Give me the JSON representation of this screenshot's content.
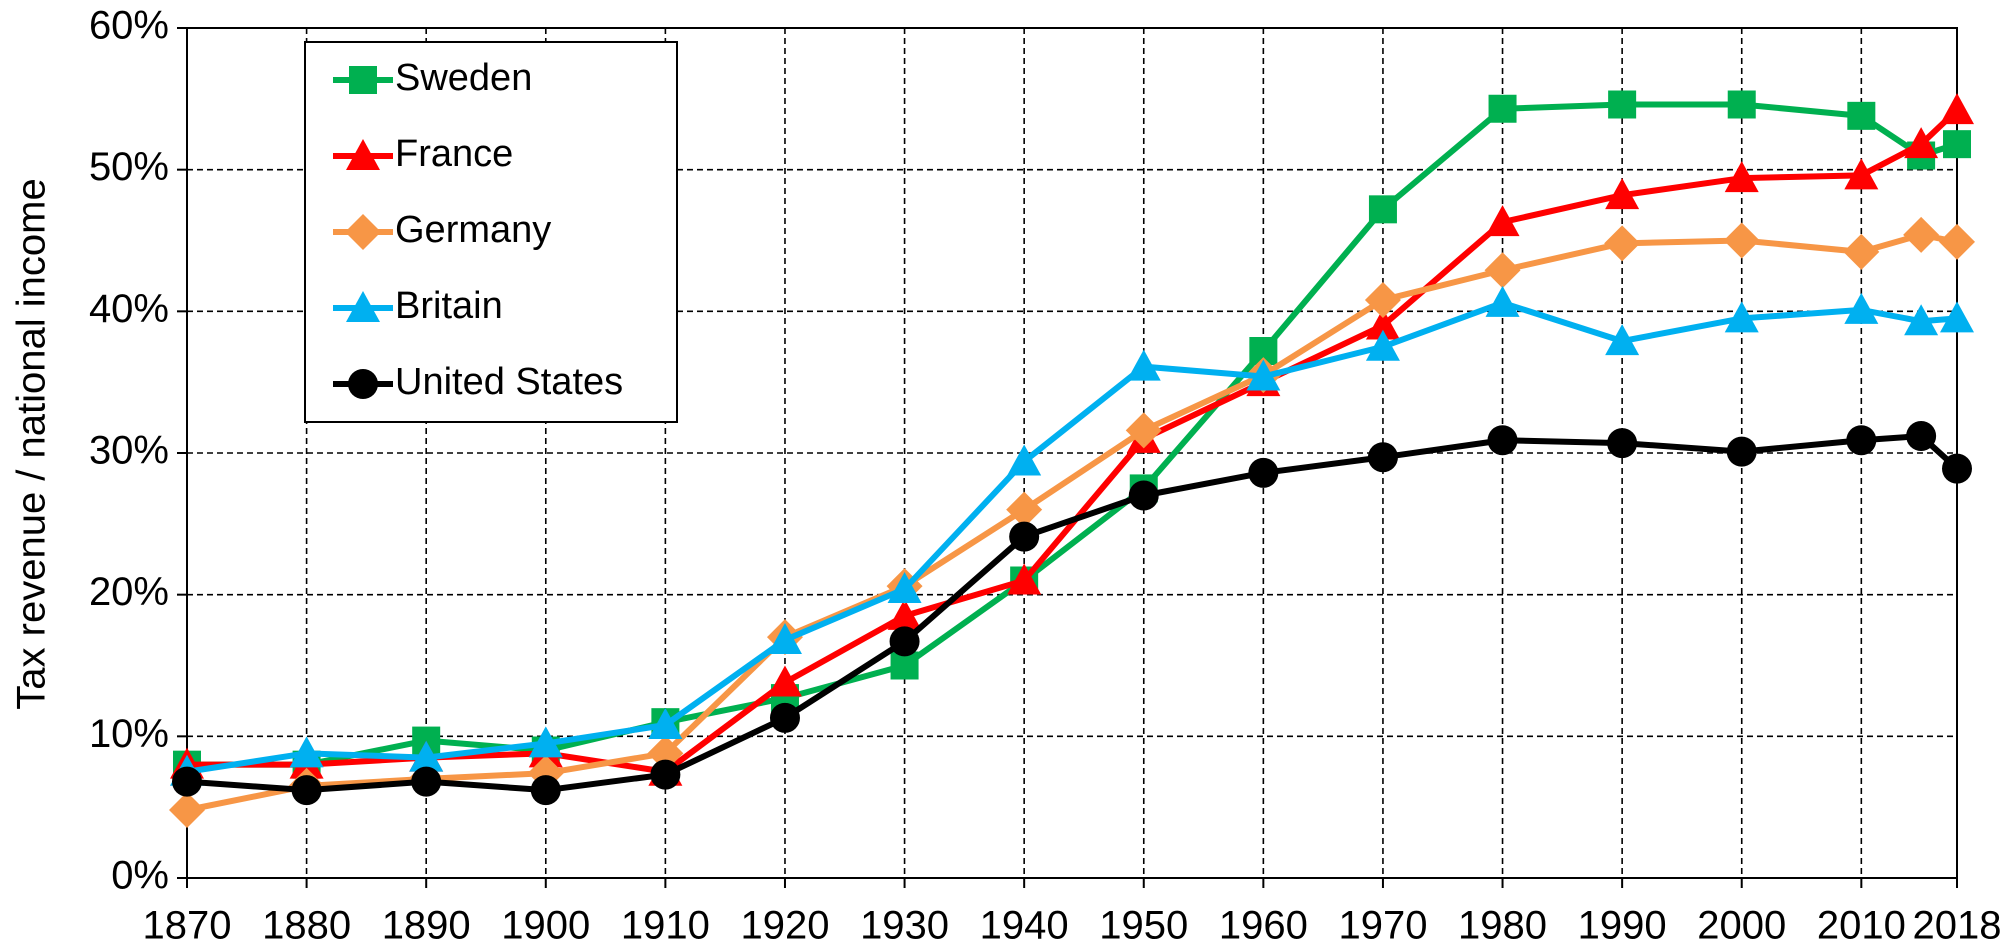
{
  "chart_data": {
    "type": "line",
    "y_label": "Tax revenue / national income",
    "x": [
      1870,
      1880,
      1890,
      1900,
      1910,
      1920,
      1930,
      1940,
      1950,
      1960,
      1970,
      1980,
      1990,
      2000,
      2010,
      2015,
      2018
    ],
    "series": [
      {
        "name": "Sweden",
        "color": "#00b050",
        "marker": "square",
        "values": [
          8,
          8,
          9.7,
          9,
          11,
          12.7,
          15,
          21,
          27.5,
          37.2,
          47.2,
          54.3,
          54.6,
          54.6,
          53.8,
          51,
          51.8
        ]
      },
      {
        "name": "France",
        "color": "#ff0000",
        "marker": "triangle",
        "values": [
          8,
          8,
          8.5,
          8.8,
          7.5,
          13.8,
          18.5,
          21,
          31,
          35,
          39,
          46.3,
          48.2,
          49.4,
          49.6,
          51.8,
          54.2
        ]
      },
      {
        "name": "Germany",
        "color": "#f79646",
        "marker": "diamond",
        "values": [
          4.8,
          6.5,
          7,
          7.4,
          8.8,
          17,
          20.6,
          26,
          31.6,
          35.5,
          40.8,
          42.9,
          44.8,
          45,
          44.2,
          45.4,
          44.9
        ]
      },
      {
        "name": "Britain",
        "color": "#00b0f0",
        "marker": "triangle",
        "values": [
          7.5,
          8.8,
          8.5,
          9.5,
          10.8,
          16.8,
          20.4,
          29.4,
          36.1,
          35.4,
          37.5,
          40.6,
          37.9,
          39.5,
          40.1,
          39.3,
          39.5
        ]
      },
      {
        "name": "United States",
        "color": "#000000",
        "marker": "circle",
        "values": [
          6.8,
          6.2,
          6.8,
          6.2,
          7.3,
          11.3,
          16.7,
          24.1,
          27,
          28.6,
          29.7,
          30.9,
          30.7,
          30.1,
          30.9,
          31.2,
          28.9
        ]
      }
    ],
    "xlim": [
      1870,
      2018
    ],
    "xticks": [
      1870,
      1880,
      1890,
      1900,
      1910,
      1920,
      1930,
      1940,
      1950,
      1960,
      1970,
      1980,
      1990,
      2000,
      2010,
      2018
    ],
    "ylim": [
      0,
      60
    ],
    "yticks": [
      {
        "value": 0,
        "label": "0%"
      },
      {
        "value": 10,
        "label": "10%"
      },
      {
        "value": 20,
        "label": "20%"
      },
      {
        "value": 30,
        "label": "30%"
      },
      {
        "value": 40,
        "label": "40%"
      },
      {
        "value": 50,
        "label": "50%"
      },
      {
        "value": 60,
        "label": "60%"
      }
    ],
    "grid": true,
    "legend": "top-left"
  }
}
